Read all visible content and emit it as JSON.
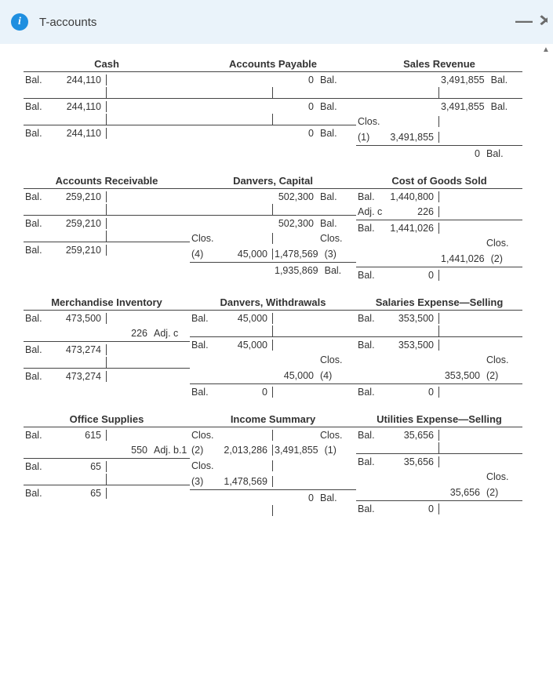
{
  "header": {
    "title": "T-accounts"
  },
  "accounts": {
    "cash": {
      "title": "Cash",
      "rows": [
        {
          "dr_lbl": "Bal.",
          "dr_val": "244,110",
          "cr_val": "",
          "cr_lbl": "",
          "top": true
        },
        {
          "spacer": true
        },
        {
          "dr_lbl": "Bal.",
          "dr_val": "244,110",
          "cr_val": "",
          "cr_lbl": "",
          "top": true
        },
        {
          "spacer": true
        },
        {
          "dr_lbl": "Bal.",
          "dr_val": "244,110",
          "cr_val": "",
          "cr_lbl": "",
          "top": true
        }
      ]
    },
    "ap": {
      "title": "Accounts Payable",
      "rows": [
        {
          "dr_lbl": "",
          "dr_val": "",
          "cr_val": "0",
          "cr_lbl": "Bal.",
          "top": true
        },
        {
          "spacer": true
        },
        {
          "dr_lbl": "",
          "dr_val": "",
          "cr_val": "0",
          "cr_lbl": "Bal.",
          "top": true
        },
        {
          "spacer": true
        },
        {
          "dr_lbl": "",
          "dr_val": "",
          "cr_val": "0",
          "cr_lbl": "Bal.",
          "top": true
        }
      ]
    },
    "sales": {
      "title": "Sales Revenue",
      "rows": [
        {
          "dr_lbl": "",
          "dr_val": "",
          "cr_val": "3,491,855",
          "cr_lbl": "Bal.",
          "top": true
        },
        {
          "spacer": true
        },
        {
          "dr_lbl": "",
          "dr_val": "",
          "cr_val": "3,491,855",
          "cr_lbl": "Bal.",
          "top": true
        },
        {
          "dr_lbl": "Clos. (1)",
          "dr_val": "3,491,855",
          "cr_val": "",
          "cr_lbl": ""
        },
        {
          "dr_lbl": "",
          "dr_val": "",
          "cr_val": "0",
          "cr_lbl": "Bal.",
          "top": true
        }
      ]
    },
    "ar": {
      "title": "Accounts Receivable",
      "rows": [
        {
          "dr_lbl": "Bal.",
          "dr_val": "259,210",
          "cr_val": "",
          "cr_lbl": "",
          "top": true
        },
        {
          "spacer": true
        },
        {
          "dr_lbl": "Bal.",
          "dr_val": "259,210",
          "cr_val": "",
          "cr_lbl": "",
          "top": true
        },
        {
          "spacer": true
        },
        {
          "dr_lbl": "Bal.",
          "dr_val": "259,210",
          "cr_val": "",
          "cr_lbl": "",
          "top": true
        }
      ]
    },
    "capital": {
      "title": "Danvers, Capital",
      "rows": [
        {
          "dr_lbl": "",
          "dr_val": "",
          "cr_val": "502,300",
          "cr_lbl": "Bal.",
          "top": true
        },
        {
          "spacer": true
        },
        {
          "dr_lbl": "",
          "dr_val": "",
          "cr_val": "502,300",
          "cr_lbl": "Bal.",
          "top": true
        },
        {
          "dr_lbl": "Clos. (4)",
          "dr_val": "45,000",
          "cr_val": "1,478,569",
          "cr_lbl": "Clos. (3)"
        },
        {
          "dr_lbl": "",
          "dr_val": "",
          "cr_val": "1,935,869",
          "cr_lbl": "Bal.",
          "top": true
        }
      ]
    },
    "cogs": {
      "title": "Cost of Goods Sold",
      "rows": [
        {
          "dr_lbl": "Bal.",
          "dr_val": "1,440,800",
          "cr_val": "",
          "cr_lbl": "",
          "top": true
        },
        {
          "dr_lbl": "Adj. c",
          "dr_val": "226",
          "cr_val": "",
          "cr_lbl": ""
        },
        {
          "dr_lbl": "Bal.",
          "dr_val": "1,441,026",
          "cr_val": "",
          "cr_lbl": "",
          "top": true
        },
        {
          "dr_lbl": "",
          "dr_val": "",
          "cr_val": "1,441,026",
          "cr_lbl": "Clos. (2)"
        },
        {
          "dr_lbl": "Bal.",
          "dr_val": "0",
          "cr_val": "",
          "cr_lbl": "",
          "top": true
        }
      ]
    },
    "inv": {
      "title": "Merchandise Inventory",
      "rows": [
        {
          "dr_lbl": "Bal.",
          "dr_val": "473,500",
          "cr_val": "",
          "cr_lbl": "",
          "top": true
        },
        {
          "dr_lbl": "",
          "dr_val": "",
          "cr_val": "226",
          "cr_lbl": "Adj. c"
        },
        {
          "dr_lbl": "Bal.",
          "dr_val": "473,274",
          "cr_val": "",
          "cr_lbl": "",
          "top": true
        },
        {
          "spacer": true
        },
        {
          "dr_lbl": "Bal.",
          "dr_val": "473,274",
          "cr_val": "",
          "cr_lbl": "",
          "top": true
        }
      ]
    },
    "withdraw": {
      "title": "Danvers, Withdrawals",
      "rows": [
        {
          "dr_lbl": "Bal.",
          "dr_val": "45,000",
          "cr_val": "",
          "cr_lbl": "",
          "top": true
        },
        {
          "spacer": true
        },
        {
          "dr_lbl": "Bal.",
          "dr_val": "45,000",
          "cr_val": "",
          "cr_lbl": "",
          "top": true
        },
        {
          "dr_lbl": "",
          "dr_val": "",
          "cr_val": "45,000",
          "cr_lbl": "Clos. (4)"
        },
        {
          "dr_lbl": "Bal.",
          "dr_val": "0",
          "cr_val": "",
          "cr_lbl": "",
          "top": true
        }
      ]
    },
    "salsell": {
      "title": "Salaries Expense—Selling",
      "rows": [
        {
          "dr_lbl": "Bal.",
          "dr_val": "353,500",
          "cr_val": "",
          "cr_lbl": "",
          "top": true
        },
        {
          "spacer": true
        },
        {
          "dr_lbl": "Bal.",
          "dr_val": "353,500",
          "cr_val": "",
          "cr_lbl": "",
          "top": true
        },
        {
          "dr_lbl": "",
          "dr_val": "",
          "cr_val": "353,500",
          "cr_lbl": "Clos. (2)"
        },
        {
          "dr_lbl": "Bal.",
          "dr_val": "0",
          "cr_val": "",
          "cr_lbl": "",
          "top": true
        }
      ]
    },
    "supplies": {
      "title": "Office Supplies",
      "rows": [
        {
          "dr_lbl": "Bal.",
          "dr_val": "615",
          "cr_val": "",
          "cr_lbl": "",
          "top": true
        },
        {
          "dr_lbl": "",
          "dr_val": "",
          "cr_val": "550",
          "cr_lbl": "Adj. b.1"
        },
        {
          "dr_lbl": "Bal.",
          "dr_val": "65",
          "cr_val": "",
          "cr_lbl": "",
          "top": true
        },
        {
          "spacer": true
        },
        {
          "dr_lbl": "Bal.",
          "dr_val": "65",
          "cr_val": "",
          "cr_lbl": "",
          "top": true
        }
      ]
    },
    "incsum": {
      "title": "Income Summary",
      "rows": [
        {
          "dr_lbl": "Clos. (2)",
          "dr_val": "2,013,286",
          "cr_val": "3,491,855",
          "cr_lbl": "Clos. (1)",
          "top": true
        },
        {
          "dr_lbl": "Clos. (3)",
          "dr_val": "1,478,569",
          "cr_val": "",
          "cr_lbl": ""
        },
        {
          "dr_lbl": "",
          "dr_val": "",
          "cr_val": "0",
          "cr_lbl": "Bal.",
          "top": true
        },
        {
          "spacer": true
        },
        {
          "dr_lbl": "",
          "dr_val": "",
          "cr_val": "",
          "cr_lbl": ""
        }
      ]
    },
    "utilsell": {
      "title": "Utilities Expense—Selling",
      "rows": [
        {
          "dr_lbl": "Bal.",
          "dr_val": "35,656",
          "cr_val": "",
          "cr_lbl": "",
          "top": true
        },
        {
          "spacer": true
        },
        {
          "dr_lbl": "Bal.",
          "dr_val": "35,656",
          "cr_val": "",
          "cr_lbl": "",
          "top": true
        },
        {
          "dr_lbl": "",
          "dr_val": "",
          "cr_val": "35,656",
          "cr_lbl": "Clos. (2)"
        },
        {
          "dr_lbl": "Bal.",
          "dr_val": "0",
          "cr_val": "",
          "cr_lbl": "",
          "top": true
        }
      ]
    }
  },
  "layout": [
    [
      "cash",
      "ap",
      "sales"
    ],
    [
      "ar",
      "capital",
      "cogs"
    ],
    [
      "inv",
      "withdraw",
      "salsell"
    ],
    [
      "supplies",
      "incsum",
      "utilsell"
    ]
  ]
}
